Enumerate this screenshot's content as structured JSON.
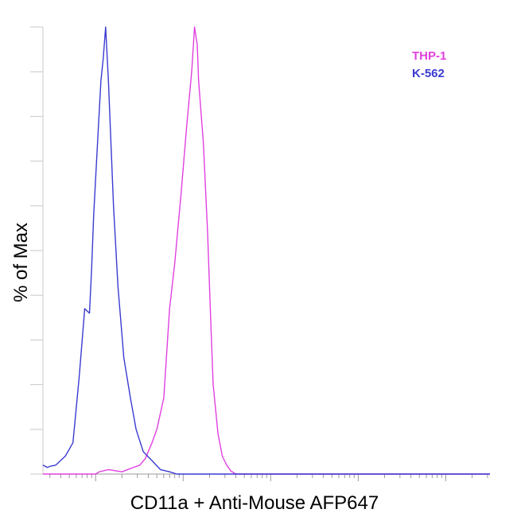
{
  "chart_data": {
    "type": "line",
    "title": "",
    "xlabel": "CD11a + Anti-Mouse AFP647",
    "ylabel": "% of Max",
    "x_scale": "log",
    "xlim": [
      0.25,
      32000
    ],
    "ylim": [
      0,
      100
    ],
    "grid": false,
    "legend_position": "top-right",
    "series": [
      {
        "name": "THP-1",
        "color": "#e040e0",
        "x": [
          0.25,
          0.5,
          1,
          1.1,
          1.4,
          2,
          2.7,
          3.2,
          3.7,
          4.4,
          5,
          6,
          7,
          8,
          9.5,
          11,
          12.5,
          13,
          13.5,
          14.5,
          15,
          17,
          19,
          20.5,
          22,
          25,
          28,
          31.5,
          35,
          40,
          50,
          60,
          70,
          80,
          32000
        ],
        "values": [
          0,
          0,
          0,
          0.5,
          1.0,
          0.5,
          1.5,
          2.0,
          3.5,
          7.0,
          10.0,
          17.0,
          37.0,
          47.0,
          63.0,
          78.0,
          90.0,
          95.0,
          100.0,
          96.0,
          88.0,
          74.0,
          54.0,
          36.0,
          20.0,
          9.0,
          4.0,
          2.0,
          0.7,
          0,
          0,
          0,
          0,
          0,
          0
        ]
      },
      {
        "name": "K-562",
        "color": "#3a3ad2",
        "x": [
          0.25,
          0.28,
          0.31,
          0.35,
          0.45,
          0.55,
          0.65,
          0.75,
          0.85,
          0.9,
          0.95,
          1.05,
          1.15,
          1.22,
          1.3,
          1.4,
          1.6,
          1.8,
          2.1,
          2.5,
          2.9,
          3.5,
          4.4,
          5.5,
          7,
          8.5,
          10,
          12,
          15,
          32000
        ],
        "values": [
          2.0,
          1.5,
          1.8,
          2.0,
          4.0,
          7.0,
          22.0,
          37.0,
          36.0,
          46.0,
          58.0,
          74.0,
          88.0,
          93.0,
          100.0,
          88.0,
          60.0,
          42.0,
          26.0,
          17.0,
          10.0,
          5.0,
          3.0,
          1.0,
          0.5,
          0,
          0,
          0,
          0,
          0
        ]
      }
    ]
  }
}
